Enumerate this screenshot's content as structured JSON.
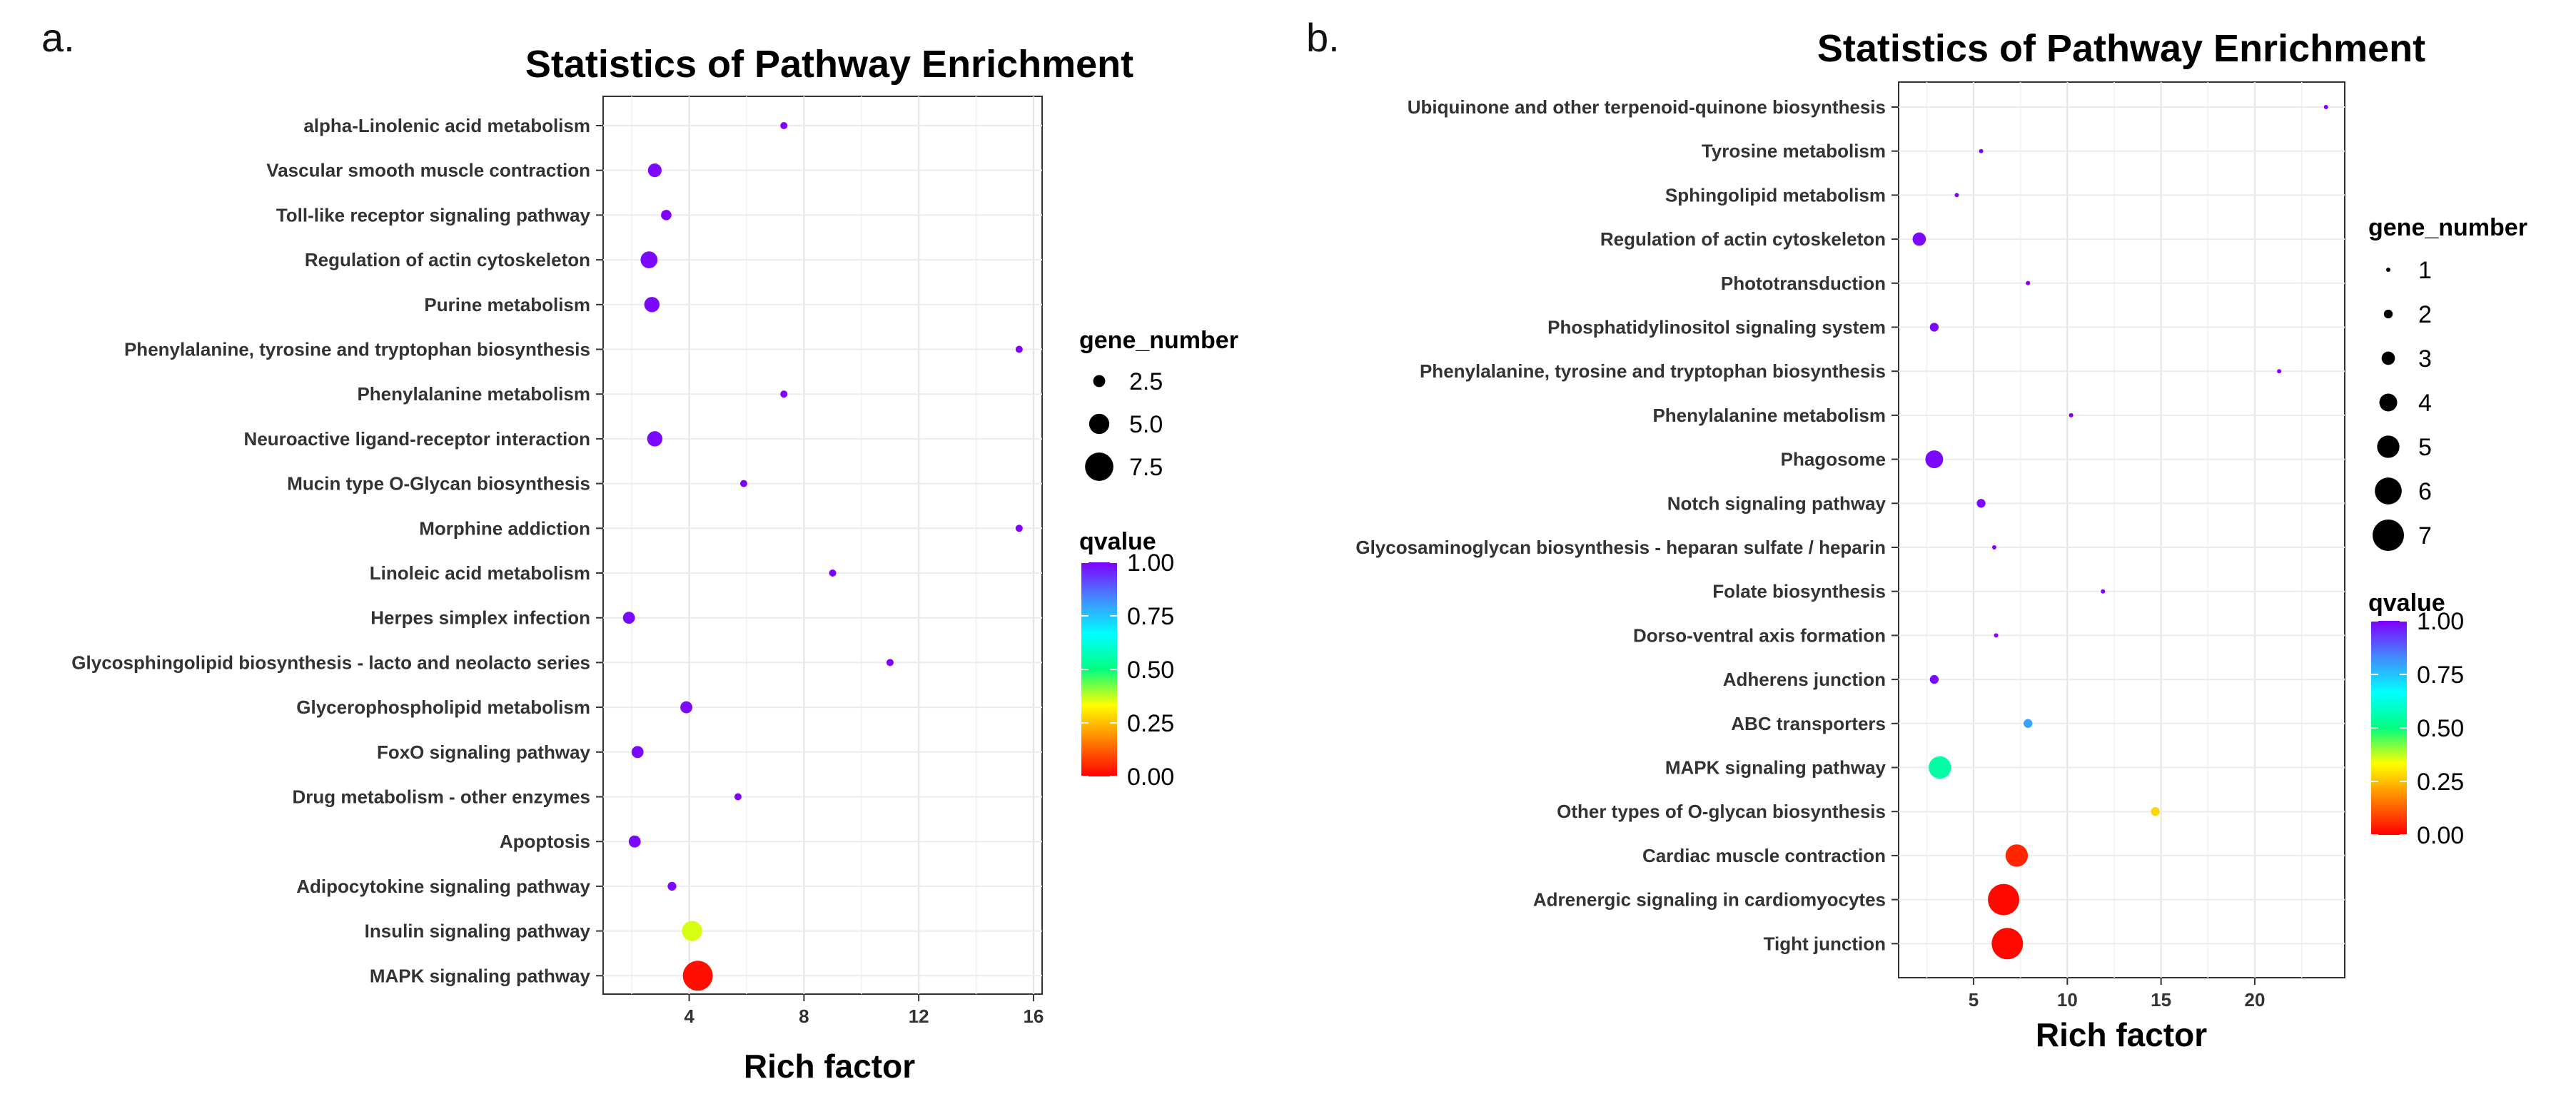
{
  "colorbar_stops": [
    "#ff0000",
    "#ff7f00",
    "#ffff00",
    "#00ff7f",
    "#00ffff",
    "#4488ff",
    "#7f00ff"
  ],
  "chart_data": [
    {
      "panel_label": "a.",
      "type": "scatter",
      "title": "Statistics of Pathway Enrichment",
      "xlabel": "Rich factor",
      "ylabel": "",
      "xlim": [
        1.0,
        16.3
      ],
      "xticks": [
        4,
        8,
        12,
        16
      ],
      "xtick_labels": [
        "4",
        "8",
        "12",
        "16"
      ],
      "grid": true,
      "legend_placement": "right",
      "size_legend": {
        "title": "gene_number",
        "values": [
          2.5,
          5.0,
          7.5
        ],
        "labels": [
          "2.5",
          "5.0",
          "7.5"
        ]
      },
      "color_legend": {
        "title": "qvalue",
        "ticks": [
          1.0,
          0.75,
          0.5,
          0.25,
          0.0
        ],
        "labels": [
          "1.00",
          "0.75",
          "0.50",
          "0.25",
          "0.00"
        ]
      },
      "size_range": [
        1,
        8
      ],
      "points": [
        {
          "pathway": "alpha-Linolenic acid metabolism",
          "rich_factor": 7.3,
          "gene_number": 1,
          "qvalue": 1.0
        },
        {
          "pathway": "Vascular smooth muscle contraction",
          "rich_factor": 2.8,
          "gene_number": 3,
          "qvalue": 0.99
        },
        {
          "pathway": "Toll-like receptor signaling pathway",
          "rich_factor": 3.2,
          "gene_number": 2,
          "qvalue": 1.0
        },
        {
          "pathway": "Regulation of actin cytoskeleton",
          "rich_factor": 2.6,
          "gene_number": 4,
          "qvalue": 0.99
        },
        {
          "pathway": "Purine metabolism",
          "rich_factor": 2.7,
          "gene_number": 3.5,
          "qvalue": 0.99
        },
        {
          "pathway": "Phenylalanine, tyrosine and tryptophan biosynthesis",
          "rich_factor": 15.5,
          "gene_number": 1,
          "qvalue": 1.0
        },
        {
          "pathway": "Phenylalanine metabolism",
          "rich_factor": 7.3,
          "gene_number": 1,
          "qvalue": 1.0
        },
        {
          "pathway": "Neuroactive ligand-receptor interaction",
          "rich_factor": 2.8,
          "gene_number": 3.5,
          "qvalue": 0.99
        },
        {
          "pathway": "Mucin type O-Glycan biosynthesis",
          "rich_factor": 5.9,
          "gene_number": 1,
          "qvalue": 1.0
        },
        {
          "pathway": "Morphine addiction",
          "rich_factor": 15.5,
          "gene_number": 1,
          "qvalue": 1.0
        },
        {
          "pathway": "Linoleic acid metabolism",
          "rich_factor": 9.0,
          "gene_number": 1,
          "qvalue": 1.0
        },
        {
          "pathway": "Herpes simplex infection",
          "rich_factor": 1.9,
          "gene_number": 2.5,
          "qvalue": 0.99
        },
        {
          "pathway": "Glycosphingolipid biosynthesis - lacto and neolacto series",
          "rich_factor": 11.0,
          "gene_number": 1,
          "qvalue": 1.0
        },
        {
          "pathway": "Glycerophospholipid metabolism",
          "rich_factor": 3.9,
          "gene_number": 2.5,
          "qvalue": 0.99
        },
        {
          "pathway": "FoxO signaling pathway",
          "rich_factor": 2.2,
          "gene_number": 2.5,
          "qvalue": 0.99
        },
        {
          "pathway": "Drug metabolism - other enzymes",
          "rich_factor": 5.7,
          "gene_number": 1,
          "qvalue": 1.0
        },
        {
          "pathway": "Apoptosis",
          "rich_factor": 2.1,
          "gene_number": 2.5,
          "qvalue": 0.99
        },
        {
          "pathway": "Adipocytokine signaling pathway",
          "rich_factor": 3.4,
          "gene_number": 1.5,
          "qvalue": 0.99
        },
        {
          "pathway": "Insulin signaling pathway",
          "rich_factor": 4.1,
          "gene_number": 5,
          "qvalue": 0.36
        },
        {
          "pathway": "MAPK signaling pathway",
          "rich_factor": 4.3,
          "gene_number": 8,
          "qvalue": 0.02
        }
      ]
    },
    {
      "panel_label": "b.",
      "type": "scatter",
      "title": "Statistics of Pathway Enrichment",
      "xlabel": "Rich factor",
      "ylabel": "",
      "xlim": [
        1.0,
        24.8
      ],
      "xticks": [
        5,
        10,
        15,
        20
      ],
      "xtick_labels": [
        "5",
        "10",
        "15",
        "20"
      ],
      "grid": true,
      "legend_placement": "right",
      "size_legend": {
        "title": "gene_number",
        "values": [
          1,
          2,
          3,
          4,
          5,
          6,
          7
        ],
        "labels": [
          "1",
          "2",
          "3",
          "4",
          "5",
          "6",
          "7"
        ]
      },
      "color_legend": {
        "title": "qvalue",
        "ticks": [
          1.0,
          0.75,
          0.5,
          0.25,
          0.0
        ],
        "labels": [
          "1.00",
          "0.75",
          "0.50",
          "0.25",
          "0.00"
        ]
      },
      "size_range": [
        1,
        7
      ],
      "points": [
        {
          "pathway": "Ubiquinone and other terpenoid-quinone biosynthesis",
          "rich_factor": 23.8,
          "gene_number": 1,
          "qvalue": 1.0
        },
        {
          "pathway": "Tyrosine metabolism",
          "rich_factor": 5.4,
          "gene_number": 1,
          "qvalue": 1.0
        },
        {
          "pathway": "Sphingolipid metabolism",
          "rich_factor": 4.1,
          "gene_number": 1,
          "qvalue": 1.0
        },
        {
          "pathway": "Regulation of actin cytoskeleton",
          "rich_factor": 2.1,
          "gene_number": 3,
          "qvalue": 0.99
        },
        {
          "pathway": "Phototransduction",
          "rich_factor": 7.9,
          "gene_number": 1,
          "qvalue": 1.0
        },
        {
          "pathway": "Phosphatidylinositol signaling system",
          "rich_factor": 2.9,
          "gene_number": 2,
          "qvalue": 0.99
        },
        {
          "pathway": "Phenylalanine, tyrosine and tryptophan biosynthesis",
          "rich_factor": 21.3,
          "gene_number": 1,
          "qvalue": 1.0
        },
        {
          "pathway": "Phenylalanine metabolism",
          "rich_factor": 10.2,
          "gene_number": 1,
          "qvalue": 1.0
        },
        {
          "pathway": "Phagosome",
          "rich_factor": 2.9,
          "gene_number": 4,
          "qvalue": 0.99
        },
        {
          "pathway": "Notch signaling pathway",
          "rich_factor": 5.4,
          "gene_number": 2,
          "qvalue": 0.99
        },
        {
          "pathway": "Glycosaminoglycan biosynthesis - heparan sulfate / heparin",
          "rich_factor": 6.1,
          "gene_number": 1,
          "qvalue": 1.0
        },
        {
          "pathway": "Folate biosynthesis",
          "rich_factor": 11.9,
          "gene_number": 1,
          "qvalue": 1.0
        },
        {
          "pathway": "Dorso-ventral axis formation",
          "rich_factor": 6.2,
          "gene_number": 1,
          "qvalue": 1.0
        },
        {
          "pathway": "Adherens junction",
          "rich_factor": 2.9,
          "gene_number": 2,
          "qvalue": 0.99
        },
        {
          "pathway": "ABC transporters",
          "rich_factor": 7.9,
          "gene_number": 2,
          "qvalue": 0.8
        },
        {
          "pathway": "MAPK signaling pathway",
          "rich_factor": 3.2,
          "gene_number": 5,
          "qvalue": 0.55
        },
        {
          "pathway": "Other types of O-glycan biosynthesis",
          "rich_factor": 14.7,
          "gene_number": 2,
          "qvalue": 0.28
        },
        {
          "pathway": "Cardiac muscle contraction",
          "rich_factor": 7.3,
          "gene_number": 5,
          "qvalue": 0.05
        },
        {
          "pathway": "Adrenergic signaling in cardiomyocytes",
          "rich_factor": 6.6,
          "gene_number": 7,
          "qvalue": 0.01
        },
        {
          "pathway": "Tight junction",
          "rich_factor": 6.8,
          "gene_number": 7,
          "qvalue": 0.01
        }
      ]
    }
  ]
}
